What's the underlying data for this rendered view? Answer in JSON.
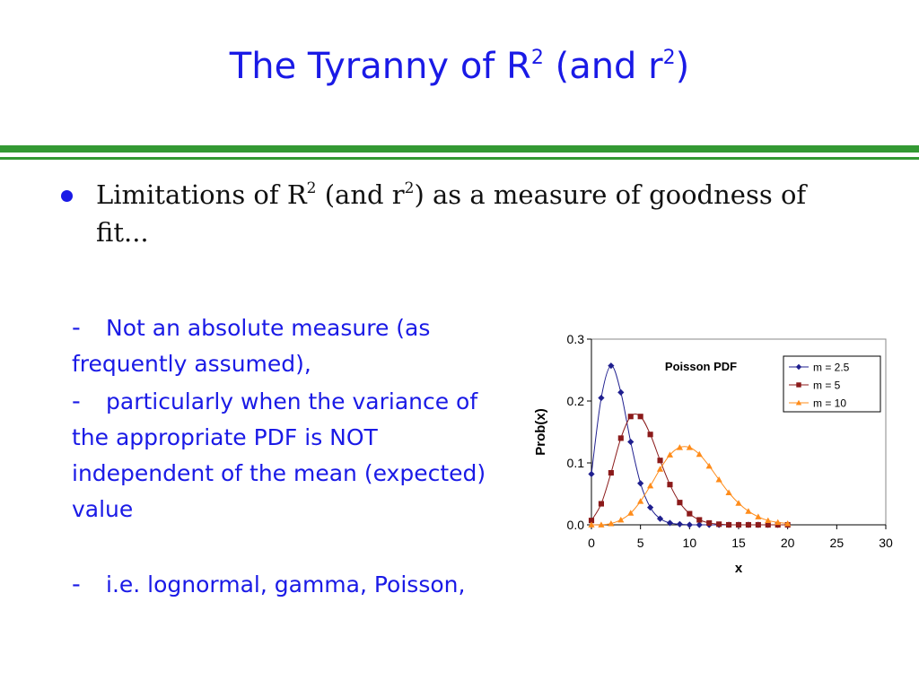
{
  "slide": {
    "title": "The Tyranny of R",
    "title_sup1": "2",
    "title_mid": " (and r",
    "title_sup2": "2",
    "title_end": ")"
  },
  "bullet": {
    "pre": "Limitations of R",
    "sup1": "2",
    "mid": " (and r",
    "sup2": "2",
    "post": ") as a measure of goodness of fit..."
  },
  "subbullets": [
    {
      "dash": "-",
      "text": "Not an absolute measure (as frequently assumed),"
    },
    {
      "dash": "-",
      "text": "particularly when the variance of the appropriate PDF is NOT independent of the mean (expected) value"
    },
    {
      "dash": "-",
      "text": "i.e. lognormal, gamma, Poisson,"
    }
  ],
  "colors": {
    "title": "#1a1ae6",
    "rule": "#339933",
    "series": [
      "#1f1f8f",
      "#8b1a1a",
      "#ff8c1a"
    ]
  },
  "chart_data": {
    "type": "line",
    "title": "Poisson PDF",
    "xlabel": "x",
    "ylabel": "Prob(x)",
    "xlim": [
      0,
      30
    ],
    "ylim": [
      0,
      0.3
    ],
    "xticks": [
      "0",
      "5",
      "10",
      "15",
      "20",
      "25",
      "30"
    ],
    "yticks": [
      "0.0",
      "0.1",
      "0.2",
      "0.3"
    ],
    "grid": false,
    "legend": "top-right",
    "x": [
      0,
      1,
      2,
      3,
      4,
      5,
      6,
      7,
      8,
      9,
      10,
      11,
      12,
      13,
      14,
      15,
      16,
      17,
      18,
      19,
      20
    ],
    "series": [
      {
        "name": "m = 2.5",
        "marker": "diamond",
        "values": [
          0.082,
          0.205,
          0.257,
          0.214,
          0.134,
          0.067,
          0.028,
          0.01,
          0.003,
          0.001,
          0.0,
          0.0,
          0.0,
          0.0,
          0.0,
          0.0,
          0.0,
          0.0,
          0.0,
          0.0,
          0.0
        ]
      },
      {
        "name": "m = 5",
        "marker": "square",
        "values": [
          0.007,
          0.034,
          0.084,
          0.14,
          0.175,
          0.175,
          0.146,
          0.104,
          0.065,
          0.036,
          0.018,
          0.008,
          0.003,
          0.001,
          0.0,
          0.0,
          0.0,
          0.0,
          0.0,
          0.0,
          0.0
        ]
      },
      {
        "name": "m = 10",
        "marker": "triangle",
        "values": [
          0.0,
          0.0,
          0.002,
          0.008,
          0.019,
          0.038,
          0.063,
          0.09,
          0.113,
          0.125,
          0.125,
          0.114,
          0.095,
          0.073,
          0.052,
          0.035,
          0.022,
          0.013,
          0.007,
          0.004,
          0.002
        ]
      }
    ]
  }
}
